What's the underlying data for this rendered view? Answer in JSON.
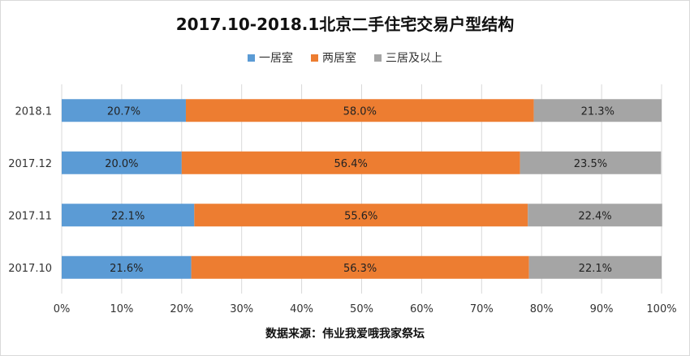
{
  "title": "2017.10-2018.1北京二手住宅交易户型结构",
  "source_note": "数据来源：伟业我爱哦我家祭坛",
  "colors": {
    "series": [
      "#5b9bd5",
      "#ed7d31",
      "#a5a5a5"
    ],
    "grid": "#d9d9d9"
  },
  "chart_data": {
    "type": "bar",
    "orientation": "horizontal",
    "stacked": "percent",
    "categories": [
      "2018.1",
      "2017.12",
      "2017.11",
      "2017.10"
    ],
    "series": [
      {
        "name": "一居室",
        "values": [
          20.7,
          20.0,
          22.1,
          21.6
        ]
      },
      {
        "name": "两居室",
        "values": [
          58.0,
          56.4,
          55.6,
          56.3
        ]
      },
      {
        "name": "三居及以上",
        "values": [
          21.3,
          23.5,
          22.4,
          22.1
        ]
      }
    ],
    "x_ticks": [
      "0%",
      "10%",
      "20%",
      "30%",
      "40%",
      "50%",
      "60%",
      "70%",
      "80%",
      "90%",
      "100%"
    ],
    "xlim": [
      0,
      100
    ],
    "grid": true,
    "legend_position": "top"
  }
}
